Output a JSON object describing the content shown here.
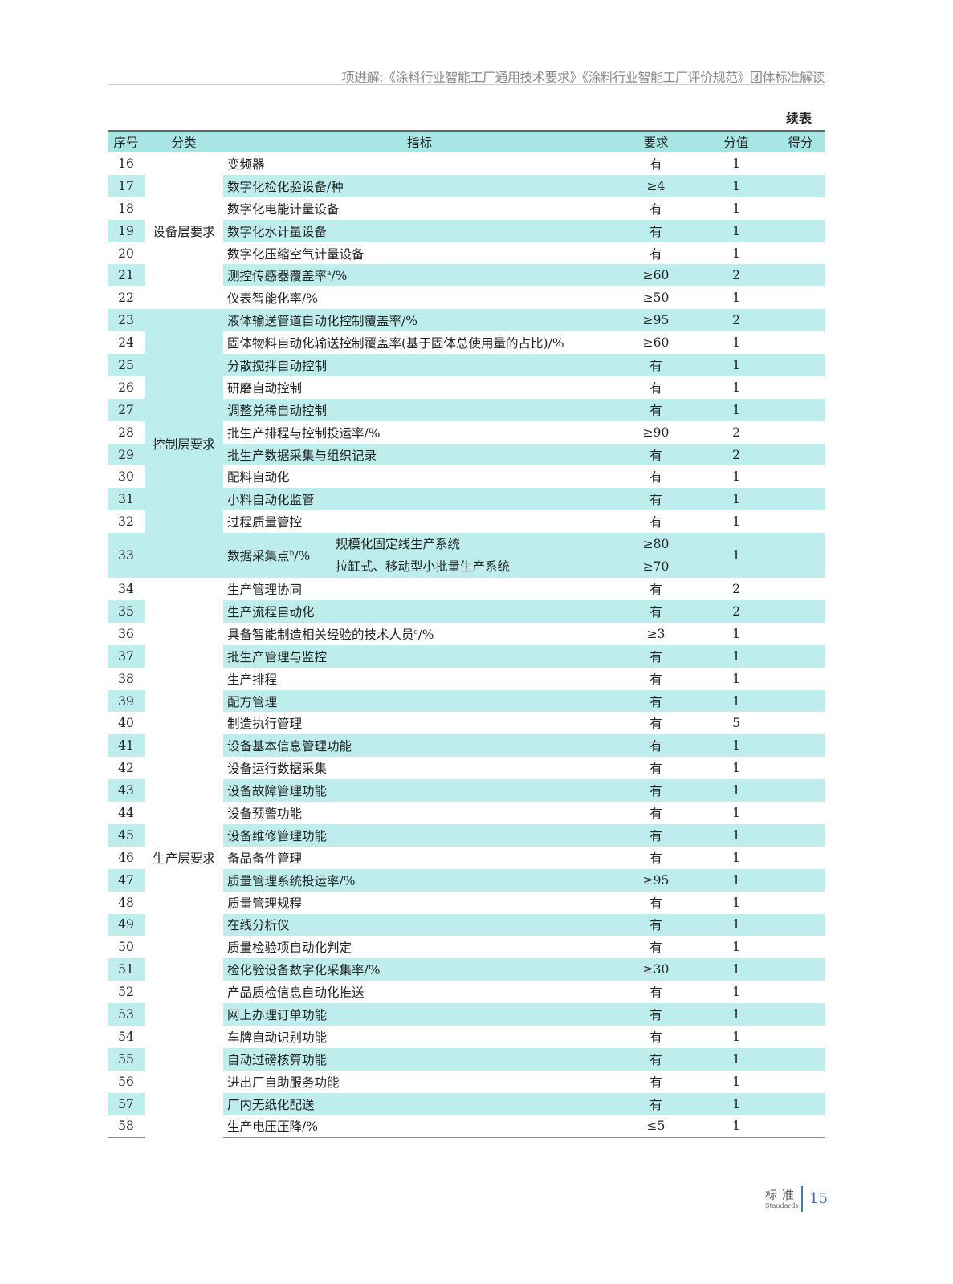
{
  "header": {
    "running_title": "项进解:《涂料行业智能工厂通用技术要求》《涂料行业智能工厂评价规范》团体标准解读",
    "continued": "续表"
  },
  "table": {
    "columns": [
      "序号",
      "分类",
      "指标",
      "要求",
      "分值",
      "得分"
    ],
    "groups": [
      {
        "label": "设备层要求",
        "from": 16,
        "to": 22,
        "highlight": false
      },
      {
        "label": "控制层要求",
        "from": 23,
        "to": 33,
        "highlight": true
      },
      {
        "label": "生产层要求",
        "from": 34,
        "to": 58,
        "highlight": false
      }
    ],
    "rows": [
      {
        "no": "16",
        "indicator": "变频器",
        "req": "有",
        "value": "1"
      },
      {
        "no": "17",
        "indicator": "数字化检化验设备/种",
        "req": "≥4",
        "value": "1"
      },
      {
        "no": "18",
        "indicator": "数字化电能计量设备",
        "req": "有",
        "value": "1"
      },
      {
        "no": "19",
        "indicator": "数字化水计量设备",
        "req": "有",
        "value": "1"
      },
      {
        "no": "20",
        "indicator": "数字化压缩空气计量设备",
        "req": "有",
        "value": "1"
      },
      {
        "no": "21",
        "indicator": "测控传感器覆盖率",
        "sup": "a",
        "suffix": "/%",
        "req": "≥60",
        "value": "2"
      },
      {
        "no": "22",
        "indicator": "仪表智能化率/%",
        "req": "≥50",
        "value": "1"
      },
      {
        "no": "23",
        "indicator": "液体输送管道自动化控制覆盖率/%",
        "req": "≥95",
        "value": "2"
      },
      {
        "no": "24",
        "indicator": "固体物料自动化输送控制覆盖率(基于固体总使用量的占比)/%",
        "req": "≥60",
        "value": "1"
      },
      {
        "no": "25",
        "indicator": "分散搅拌自动控制",
        "req": "有",
        "value": "1"
      },
      {
        "no": "26",
        "indicator": "研磨自动控制",
        "req": "有",
        "value": "1"
      },
      {
        "no": "27",
        "indicator": "调整兑稀自动控制",
        "req": "有",
        "value": "1"
      },
      {
        "no": "28",
        "indicator": "批生产排程与控制投运率/%",
        "req": "≥90",
        "value": "2"
      },
      {
        "no": "29",
        "indicator": "批生产数据采集与组织记录",
        "req": "有",
        "value": "2"
      },
      {
        "no": "30",
        "indicator": "配料自动化",
        "req": "有",
        "value": "1"
      },
      {
        "no": "31",
        "indicator": "小料自动化监管",
        "req": "有",
        "value": "1"
      },
      {
        "no": "32",
        "indicator": "过程质量管控",
        "req": "有",
        "value": "1"
      },
      {
        "no": "33",
        "indicator": "数据采集点",
        "sup": "b",
        "suffix": "/%",
        "subitems": [
          {
            "label": "规模化固定线生产系统",
            "req": "≥80"
          },
          {
            "label": "拉缸式、移动型小批量生产系统",
            "req": "≥70"
          }
        ],
        "value": "1"
      },
      {
        "no": "34",
        "indicator": "生产管理协同",
        "req": "有",
        "value": "2"
      },
      {
        "no": "35",
        "indicator": "生产流程自动化",
        "req": "有",
        "value": "2"
      },
      {
        "no": "36",
        "indicator": "具备智能制造相关经验的技术人员",
        "sup": "c",
        "suffix": "/%",
        "req": "≥3",
        "value": "1"
      },
      {
        "no": "37",
        "indicator": "批生产管理与监控",
        "req": "有",
        "value": "1"
      },
      {
        "no": "38",
        "indicator": "生产排程",
        "req": "有",
        "value": "1"
      },
      {
        "no": "39",
        "indicator": "配方管理",
        "req": "有",
        "value": "1"
      },
      {
        "no": "40",
        "indicator": "制造执行管理",
        "req": "有",
        "value": "5"
      },
      {
        "no": "41",
        "indicator": "设备基本信息管理功能",
        "req": "有",
        "value": "1"
      },
      {
        "no": "42",
        "indicator": "设备运行数据采集",
        "req": "有",
        "value": "1"
      },
      {
        "no": "43",
        "indicator": "设备故障管理功能",
        "req": "有",
        "value": "1"
      },
      {
        "no": "44",
        "indicator": "设备预警功能",
        "req": "有",
        "value": "1"
      },
      {
        "no": "45",
        "indicator": "设备维修管理功能",
        "req": "有",
        "value": "1"
      },
      {
        "no": "46",
        "indicator": "备品备件管理",
        "req": "有",
        "value": "1"
      },
      {
        "no": "47",
        "indicator": "质量管理系统投运率/%",
        "req": "≥95",
        "value": "1"
      },
      {
        "no": "48",
        "indicator": "质量管理规程",
        "req": "有",
        "value": "1"
      },
      {
        "no": "49",
        "indicator": "在线分析仪",
        "req": "有",
        "value": "1"
      },
      {
        "no": "50",
        "indicator": "质量检验项自动化判定",
        "req": "有",
        "value": "1"
      },
      {
        "no": "51",
        "indicator": "检化验设备数字化采集率/%",
        "req": "≥30",
        "value": "1"
      },
      {
        "no": "52",
        "indicator": "产品质检信息自动化推送",
        "req": "有",
        "value": "1"
      },
      {
        "no": "53",
        "indicator": "网上办理订单功能",
        "req": "有",
        "value": "1"
      },
      {
        "no": "54",
        "indicator": "车牌自动识别功能",
        "req": "有",
        "value": "1"
      },
      {
        "no": "55",
        "indicator": "自动过磅核算功能",
        "req": "有",
        "value": "1"
      },
      {
        "no": "56",
        "indicator": "进出厂自助服务功能",
        "req": "有",
        "value": "1"
      },
      {
        "no": "57",
        "indicator": "厂内无纸化配送",
        "req": "有",
        "value": "1"
      },
      {
        "no": "58",
        "indicator": "生产电压压降/%",
        "req": "≤5",
        "value": "1"
      }
    ]
  },
  "footer": {
    "logo_cn": "标准",
    "logo_en": "Standards",
    "page": "15"
  },
  "colors": {
    "stripe": "#bdeeed",
    "header": "#a8e6e6",
    "page_number": "#3a6fa8"
  }
}
